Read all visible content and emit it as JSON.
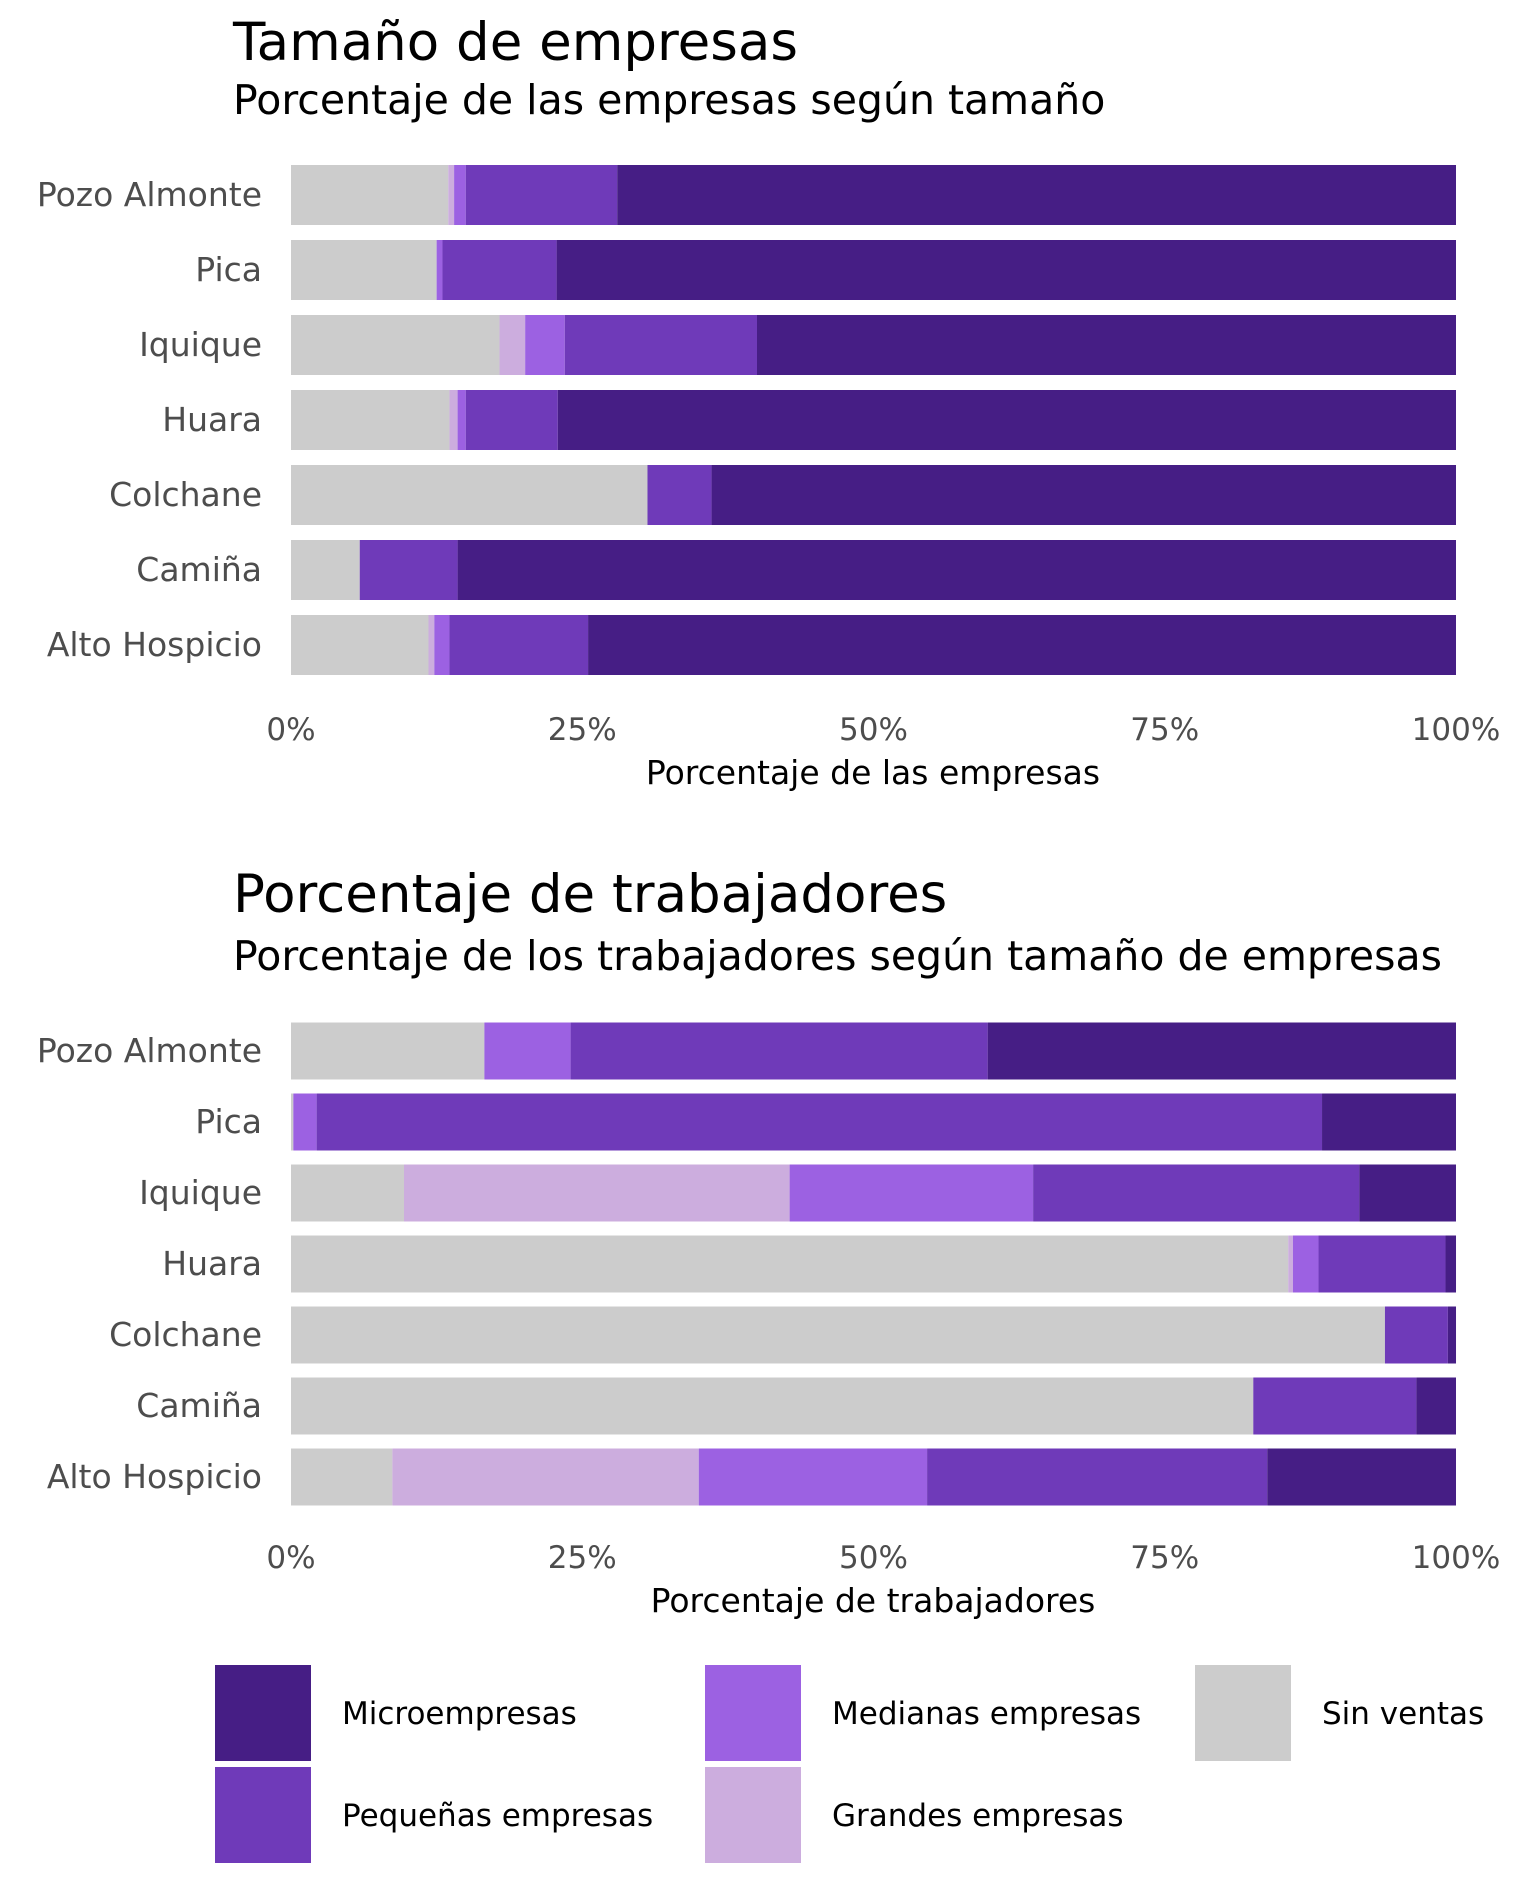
{
  "colors": {
    "Microempresas": "#461e85",
    "Pequeñas empresas": "#6f3ab9",
    "Medianas empresas": "#9c61e2",
    "Grandes empresas": "#ccadde",
    "Sin ventas": "#cccccc"
  },
  "legend": {
    "items": [
      "Microempresas",
      "Medianas empresas",
      "Sin ventas",
      "Pequeñas empresas",
      "Grandes empresas"
    ]
  },
  "chart_data": [
    {
      "type": "bar",
      "orientation": "horizontal",
      "stacked": true,
      "title": "Tamaño de empresas",
      "subtitle": "Porcentaje de las empresas según tamaño",
      "xlabel": "Porcentaje de las empresas",
      "ylabel": "",
      "xlim": [
        0,
        100
      ],
      "xticks": [
        "0%",
        "25%",
        "50%",
        "75%",
        "100%"
      ],
      "categories": [
        "Pozo Almonte",
        "Pica",
        "Iquique",
        "Huara",
        "Colchane",
        "Camiña",
        "Alto Hospicio"
      ],
      "series": [
        {
          "name": "Sin ventas",
          "values": [
            13.5,
            12.5,
            17.9,
            13.6,
            30.6,
            5.9,
            11.8
          ]
        },
        {
          "name": "Grandes empresas",
          "values": [
            0.5,
            0.0,
            2.2,
            0.7,
            0.0,
            0.0,
            0.5
          ]
        },
        {
          "name": "Medianas empresas",
          "values": [
            1.0,
            0.5,
            3.4,
            0.7,
            0.0,
            0.0,
            1.3
          ]
        },
        {
          "name": "Pequeñas empresas",
          "values": [
            13.0,
            9.8,
            16.5,
            7.9,
            5.5,
            8.4,
            11.9
          ]
        },
        {
          "name": "Microempresas",
          "values": [
            72.0,
            77.2,
            60.0,
            77.1,
            63.9,
            85.7,
            74.5
          ]
        }
      ]
    },
    {
      "type": "bar",
      "orientation": "horizontal",
      "stacked": true,
      "title": "Porcentaje de trabajadores",
      "subtitle": "Porcentaje de los trabajadores según tamaño de empresas",
      "xlabel": "Porcentaje de trabajadores",
      "ylabel": "",
      "xlim": [
        0,
        100
      ],
      "xticks": [
        "0%",
        "25%",
        "50%",
        "75%",
        "100%"
      ],
      "categories": [
        "Pozo Almonte",
        "Pica",
        "Iquique",
        "Huara",
        "Colchane",
        "Camiña",
        "Alto Hospicio"
      ],
      "series": [
        {
          "name": "Sin ventas",
          "values": [
            16.6,
            0.2,
            9.7,
            85.6,
            93.9,
            82.6,
            8.7
          ]
        },
        {
          "name": "Grandes empresas",
          "values": [
            0.0,
            0.0,
            33.1,
            0.4,
            0.0,
            0.0,
            26.3
          ]
        },
        {
          "name": "Medianas empresas",
          "values": [
            7.4,
            2.0,
            20.9,
            2.2,
            0.0,
            0.0,
            19.6
          ]
        },
        {
          "name": "Pequeñas empresas",
          "values": [
            35.8,
            86.3,
            28.0,
            10.9,
            5.4,
            14.0,
            29.2
          ]
        },
        {
          "name": "Microempresas",
          "values": [
            40.2,
            11.5,
            8.3,
            0.9,
            0.7,
            3.4,
            16.2
          ]
        }
      ]
    }
  ]
}
